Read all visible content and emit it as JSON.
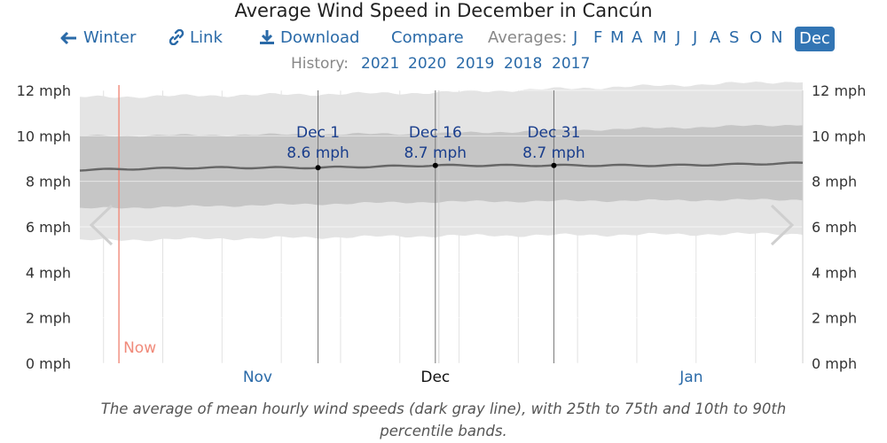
{
  "header": {
    "title": "Average Wind Speed in December in Cancún",
    "winter_label": "Winter",
    "link_label": "Link",
    "download_label": "Download",
    "compare_label": "Compare",
    "averages_label": "Averages:",
    "months": [
      "J",
      "F",
      "M",
      "A",
      "M",
      "J",
      "J",
      "A",
      "S",
      "O",
      "N",
      "Dec"
    ],
    "selected_month": "Dec",
    "history_label": "History:",
    "history_years": [
      "2021",
      "2020",
      "2019",
      "2018",
      "2017"
    ]
  },
  "caption": {
    "line1": "The average of mean hourly wind speeds (dark gray line), with 25th to 75th and 10th to 90th",
    "line2": "percentile bands."
  },
  "now_label": "Now",
  "colors": {
    "band_outer": "#e4e4e4",
    "band_inner": "#c6c6c6",
    "mean_line": "#666666",
    "now_line": "#f08a7a",
    "link_blue": "#2a6aa8",
    "annotation": "#1a3e8c"
  },
  "chart_data": {
    "type": "area",
    "title": "Average Wind Speed in December in Cancún",
    "xlabel": "",
    "ylabel": "",
    "ylim": [
      0,
      12
    ],
    "y_ticks": [
      "0 mph",
      "2 mph",
      "4 mph",
      "6 mph",
      "8 mph",
      "10 mph",
      "12 mph"
    ],
    "x_range_days": [
      -30,
      31
    ],
    "x_tick_labels": [
      {
        "label": "Nov",
        "day": -15,
        "highlight": false
      },
      {
        "label": "Dec",
        "day": 0,
        "highlight": true
      },
      {
        "label": "Jan",
        "day": 21.6,
        "highlight": false
      }
    ],
    "now_day": -26.7,
    "series": [
      {
        "name": "mean hourly wind speed",
        "x": [
          -30,
          -20,
          -10,
          0,
          10,
          20,
          31
        ],
        "values": [
          8.5,
          8.6,
          8.6,
          8.7,
          8.7,
          8.7,
          8.8
        ]
      },
      {
        "name": "25th percentile",
        "x": [
          -30,
          0,
          31
        ],
        "values": [
          6.8,
          7.1,
          7.2
        ]
      },
      {
        "name": "75th percentile",
        "x": [
          -30,
          0,
          31
        ],
        "values": [
          10.0,
          10.1,
          10.5
        ]
      },
      {
        "name": "10th percentile",
        "x": [
          -30,
          0,
          31
        ],
        "values": [
          5.4,
          5.6,
          5.7
        ]
      },
      {
        "name": "90th percentile",
        "x": [
          -30,
          0,
          31
        ],
        "values": [
          11.7,
          11.9,
          12.4
        ]
      }
    ],
    "annotations": [
      {
        "date": "Dec 1",
        "value": "8.6 mph",
        "day": -9.9,
        "y": 8.6
      },
      {
        "date": "Dec 16",
        "value": "8.7 mph",
        "day": 0,
        "y": 8.7
      },
      {
        "date": "Dec 31",
        "value": "8.7 mph",
        "day": 10,
        "y": 8.7
      }
    ],
    "grid": true
  }
}
